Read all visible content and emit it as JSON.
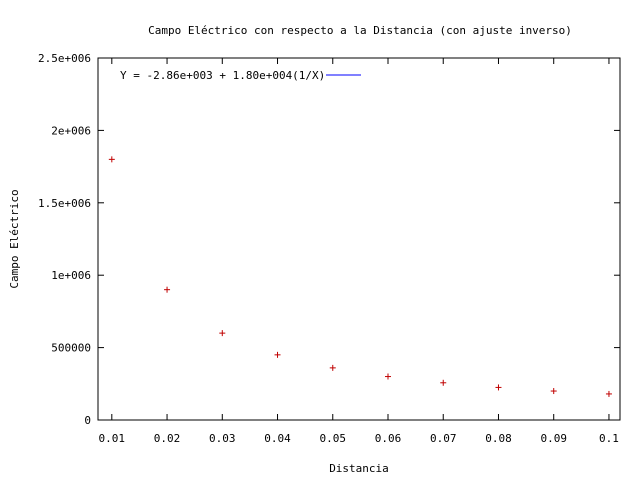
{
  "chart_data": {
    "type": "line",
    "title": "Campo Eléctrico con respecto a la Distancia (con ajuste inverso)",
    "xlabel": "Distancia",
    "ylabel": "Campo Eléctrico",
    "xlim": [
      0.0075,
      0.102
    ],
    "ylim": [
      0,
      2500000
    ],
    "x_ticks": [
      {
        "value": 0.01,
        "label": "0.01"
      },
      {
        "value": 0.02,
        "label": "0.02"
      },
      {
        "value": 0.03,
        "label": "0.03"
      },
      {
        "value": 0.04,
        "label": "0.04"
      },
      {
        "value": 0.05,
        "label": "0.05"
      },
      {
        "value": 0.06,
        "label": "0.06"
      },
      {
        "value": 0.07,
        "label": "0.07"
      },
      {
        "value": 0.08,
        "label": "0.08"
      },
      {
        "value": 0.09,
        "label": "0.09"
      },
      {
        "value": 0.1,
        "label": "0.1"
      }
    ],
    "y_ticks": [
      {
        "value": 0,
        "label": "0"
      },
      {
        "value": 500000,
        "label": "500000"
      },
      {
        "value": 1000000,
        "label": "1e+006"
      },
      {
        "value": 1500000,
        "label": "1.5e+006"
      },
      {
        "value": 2000000,
        "label": "2e+006"
      },
      {
        "value": 2500000,
        "label": "2.5e+006"
      }
    ],
    "grid": false,
    "legend_position": "top-left",
    "points": {
      "color": "#c00000",
      "x": [
        0.01,
        0.02,
        0.03,
        0.04,
        0.05,
        0.06,
        0.07,
        0.08,
        0.09,
        0.1
      ],
      "y": [
        1800000,
        900000,
        600000,
        450000,
        360000,
        300000,
        257000,
        225000,
        200000,
        180000
      ]
    },
    "series": [
      {
        "name": "Y = -2.86e+003 + 1.80e+004(1/X)",
        "color": "#0000ff",
        "fit": {
          "intercept": -2860,
          "coefficient": 18000
        }
      }
    ]
  }
}
